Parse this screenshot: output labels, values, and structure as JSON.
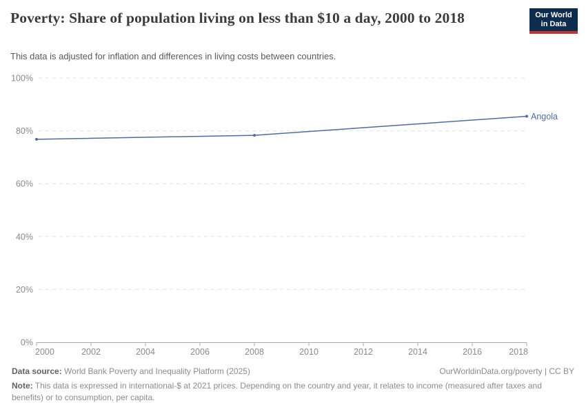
{
  "header": {
    "title": "Poverty: Share of population living on less than $10 a day, 2000 to 2018",
    "subtitle": "This data is adjusted for inflation and differences in living costs between countries.",
    "logo": {
      "line1": "Our World",
      "line2": "in Data"
    }
  },
  "chart_data": {
    "type": "line",
    "title": "Poverty: Share of population living on less than $10 a day, 2000 to 2018",
    "subtitle": "This data is adjusted for inflation and differences in living costs between countries.",
    "xlim": [
      2000,
      2018
    ],
    "ylim": [
      0,
      100
    ],
    "x_ticks": [
      2000,
      2002,
      2004,
      2006,
      2008,
      2010,
      2012,
      2014,
      2016,
      2018
    ],
    "y_ticks": [
      0,
      20,
      40,
      60,
      80,
      100
    ],
    "y_tick_suffix": "%",
    "grid": "horizontal-dashed",
    "legend_position": "label-at-line-end",
    "series": [
      {
        "name": "Angola",
        "color": "#4d6ba3",
        "x": [
          2000,
          2008,
          2018
        ],
        "values": [
          76.8,
          78.3,
          85.5
        ]
      }
    ]
  },
  "footer": {
    "source_label": "Data source:",
    "source_text": " World Bank Poverty and Inequality Platform (2025)",
    "attribution": "OurWorldinData.org/poverty | CC BY",
    "note_label": "Note:",
    "note_text": " This data is expressed in international-$ at 2021 prices. Depending on the country and year, it relates to income (measured after taxes and benefits) or to consumption, per capita."
  },
  "colors": {
    "line": "#4d6ba3",
    "gridline": "#e2e2e2",
    "axis_line": "#a8a8a8",
    "axis_text": "#8a8a8a",
    "title_text": "#3b3b3b",
    "subtitle_text": "#595959",
    "footer_text": "#8c8c8c",
    "logo_background": "#0d2d4e",
    "logo_red": "#c5342c"
  }
}
